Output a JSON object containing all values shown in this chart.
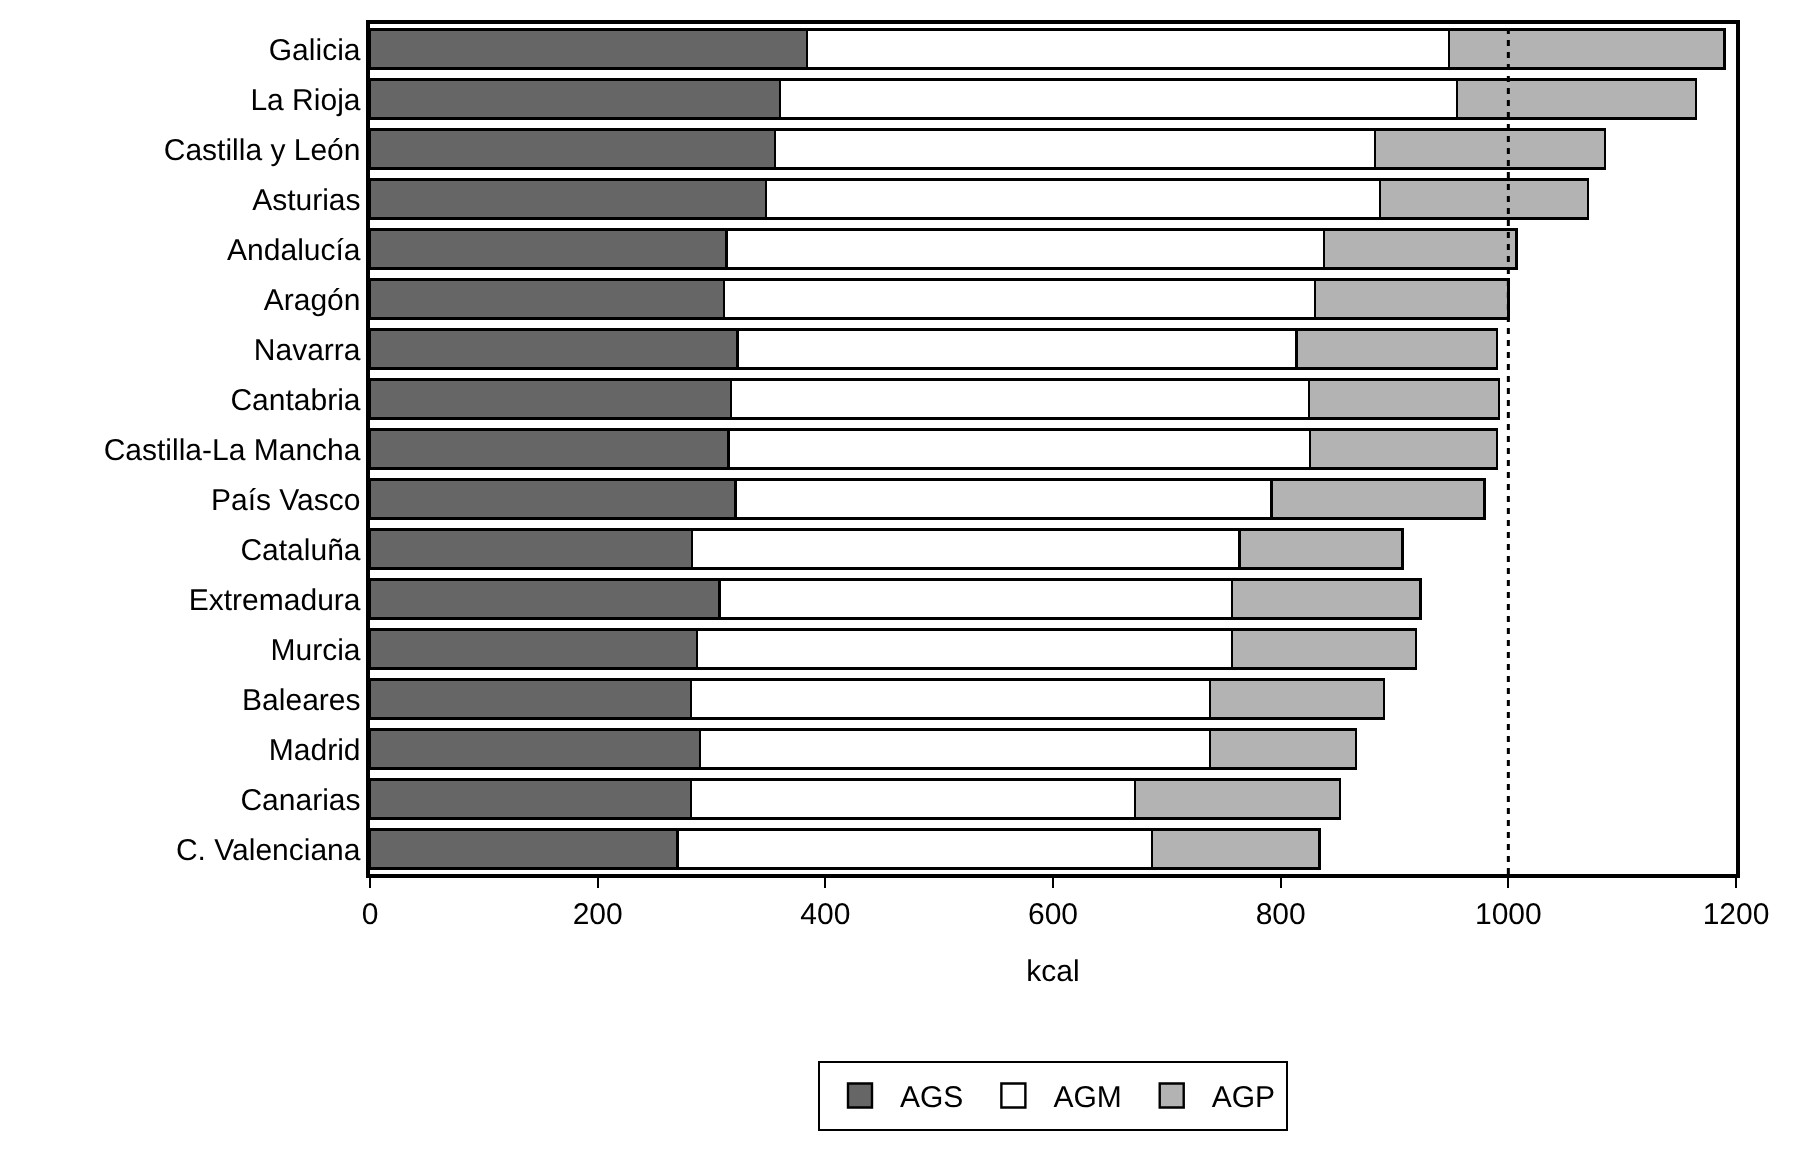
{
  "chart_data": {
    "type": "bar",
    "orientation": "horizontal",
    "stacked": true,
    "xlabel": "kcal",
    "categories": [
      "Galicia",
      "La Rioja",
      "Castilla y León",
      "Asturias",
      "Andalucía",
      "Aragón",
      "Navarra",
      "Cantabria",
      "Castilla-La Mancha",
      "País Vasco",
      "Cataluña",
      "Extremadura",
      "Murcia",
      "Baleares",
      "Madrid",
      "Canarias",
      "C. Valenciana"
    ],
    "series": [
      {
        "name": "AGS",
        "color": "#666666",
        "values": [
          384,
          360,
          356,
          348,
          313,
          311,
          323,
          317,
          315,
          321,
          283,
          307,
          287,
          282,
          290,
          282,
          270
        ]
      },
      {
        "name": "AGM",
        "color": "#ffffff",
        "values": [
          564,
          595,
          527,
          539,
          525,
          519,
          491,
          508,
          511,
          471,
          481,
          450,
          470,
          456,
          448,
          390,
          417
        ]
      },
      {
        "name": "AGP",
        "color": "#b3b3b3",
        "values": [
          242,
          210,
          202,
          183,
          169,
          170,
          176,
          167,
          164,
          187,
          143,
          166,
          162,
          153,
          128,
          180,
          147
        ]
      }
    ],
    "xlim": [
      0,
      1200
    ],
    "xticks": [
      0,
      200,
      400,
      600,
      800,
      1000,
      1200
    ],
    "ref_lines": [
      {
        "axis": "x",
        "value": 1000,
        "line_style": "dotted",
        "color": "#000000"
      }
    ],
    "legend": "bottom"
  }
}
